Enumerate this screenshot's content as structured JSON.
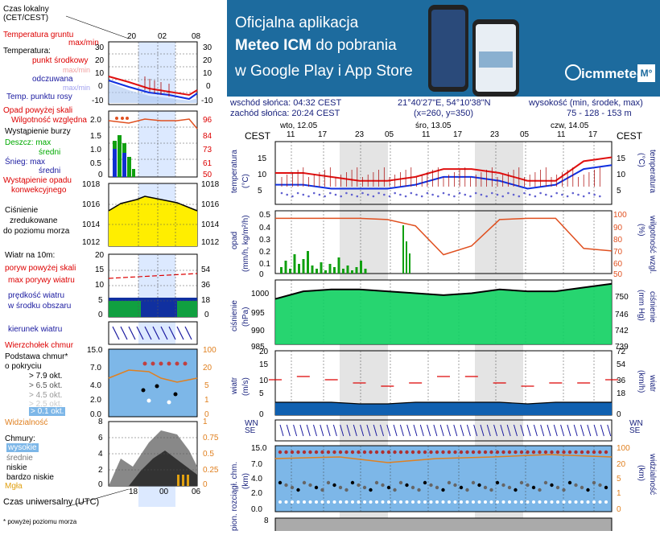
{
  "legend": {
    "local_time": "Czas lokalny\n(CET/CEST)",
    "local_ticks": [
      "20",
      "02",
      "08"
    ],
    "ground_temp": "Temperatura gruntu",
    "ground_temp_2": "max/min",
    "temperature": "Temperatura:",
    "mid_point": "punkt środkowy",
    "max_min_1": "max/min",
    "feels_like": "odczuwana",
    "max_min_2": "max/min",
    "dew_point": "Temp. punktu rosy",
    "temp_ticks_left": [
      "30",
      "20",
      "10",
      "0",
      "-10"
    ],
    "temp_ticks_right": [
      "30",
      "20",
      "10",
      "0",
      "-10"
    ],
    "precip_above": "Opad powyżej skali",
    "humidity": "Wilgotność względna",
    "storm": "Wystąpienie burzy",
    "rain_max": "Deszcz: max",
    "rain_avg": "średni",
    "snow_max": "Śnieg: max",
    "snow_avg": "średni",
    "precip_occurrence": "Wystąpienie opadu",
    "precip_convective": "konwekcyjnego",
    "precip_ticks": [
      "2.0",
      "1.5",
      "1.0",
      "0.5",
      "0"
    ],
    "humidity_ticks": [
      "96",
      "84",
      "73",
      "61",
      "50"
    ],
    "pressure": "Ciśnienie",
    "pressure_reduced": "zredukowane",
    "pressure_sea": "do poziomu morza",
    "pressure_ticks": [
      "1018",
      "1016",
      "1014",
      "1012"
    ],
    "wind_10m": "Wiatr na 10m:",
    "gust_above": "poryw powyżej skali",
    "max_gusts": "max porywy wiatru",
    "wind_speed": "prędkość wiatru",
    "wind_avg": "w środku obszaru",
    "wind_ticks_left": [
      "20",
      "15",
      "10",
      "5",
      "0"
    ],
    "wind_ticks_right": [
      "72",
      "54",
      "36",
      "18",
      "0"
    ],
    "wind_dir": "kierunek wiatru",
    "cloud_top": "Wierzchołek chmur",
    "cloud_base": "Podstawa chmur*",
    "cloud_base_2": "o pokryciu",
    "okt_79": "> 7.9 okt.",
    "okt_65": "> 6.5 okt.",
    "okt_45": "> 4.5 okt.",
    "okt_25": "> 2.5 okt.",
    "okt_01": "> 0.1 okt.",
    "visibility": "Widzialność",
    "cloud_ticks_left": [
      "15.0",
      "7.0",
      "4.0",
      "2.0",
      "0.0"
    ],
    "cloud_ticks_right": [
      "100",
      "20",
      "5",
      "1",
      "0"
    ],
    "clouds": "Chmury:",
    "high": "wysokie",
    "middle": "średnie",
    "low": "niskie",
    "very_low": "bardzo niskie",
    "fog": "Mgła",
    "cloud_left_ticks": [
      "8",
      "6",
      "4",
      "2",
      "0"
    ],
    "cloud_right_ticks": [
      "1",
      "0.75",
      "0.5",
      "0.25",
      "0"
    ],
    "utc_ticks": [
      "18",
      "00",
      "06"
    ],
    "utc_time": "Czas uniwersalny (UTC)",
    "footnote": "* powyżej poziomu morza"
  },
  "banner": {
    "line1": "Oficjalna aplikacja",
    "line2_bold": "Meteo ICM",
    "line2_rest": " do pobrania",
    "line3": "w Google Play i App Store",
    "logo": "icmmeteo",
    "logo_badge": "M°"
  },
  "meta": {
    "sunrise": "wschód słońca: 04:32 CEST",
    "sunset": "zachód słońca: 20:24 CEST",
    "coords": "21°40'27\"E, 54°10'38\"N",
    "grid": "(x=260, y=350)",
    "elev_label": "wysokość (min, środek, max)",
    "elev_values": "75 - 128 - 153 m"
  },
  "main": {
    "cest_left": "CEST",
    "cest_right": "CEST",
    "days": [
      "wto, 12.05",
      "śro, 13.05",
      "czw, 14.05"
    ],
    "hours": [
      "11",
      "17",
      "23",
      "05",
      "11",
      "17",
      "23",
      "05",
      "11",
      "17"
    ],
    "temp_label_left": "temperatura",
    "temp_unit_left": "(°C)",
    "temp_label_right": "temperatura",
    "temp_unit_right": "(°C)",
    "temp_ticks": [
      "15",
      "10",
      "5"
    ],
    "precip_label_left": "opad",
    "precip_unit_left": "(mm/h, kg/m²/h)",
    "precip_label_right": "wilgotność wzgl.",
    "precip_unit_right": "(%)",
    "precip_ticks": [
      "0.5",
      "0.4",
      "0.3",
      "0.2",
      "0.1",
      "0"
    ],
    "humidity_ticks": [
      "100",
      "90",
      "80",
      "70",
      "60",
      "50"
    ],
    "pressure_label_left": "ciśnienie",
    "pressure_unit_left": "(hPa)",
    "pressure_label_right": "ciśnienie",
    "pressure_unit_right": "(mm Hg)",
    "pressure_ticks": [
      "1000",
      "995",
      "990",
      "985"
    ],
    "pressure_ticks_right": [
      "750",
      "746",
      "742",
      "739"
    ],
    "wind_label_left": "wiatr",
    "wind_unit_left": "(m/s)",
    "wind_label_right": "wiatr",
    "wind_unit_right": "(km/h)",
    "wind_ticks": [
      "20",
      "15",
      "10",
      "5",
      "0"
    ],
    "wind_ticks_right": [
      "72",
      "54",
      "36",
      "18",
      "0"
    ],
    "dir_letters": [
      "W",
      "N",
      "S",
      "E"
    ],
    "cloud_label_left": "pion. rozciągł. chm.",
    "cloud_unit_left": "(km)",
    "cloud_label_right": "widzialność",
    "cloud_unit_right": "(km)",
    "cloud_ticks": [
      "15.0",
      "7.0",
      "4.0",
      "2.0",
      "0.0"
    ],
    "vis_ticks": [
      "100",
      "20",
      "5",
      "1",
      "0"
    ],
    "bottom_tick": "8"
  },
  "colors": {
    "temp": "#e01010",
    "feels": "#1030e0",
    "dew": "#6060d0",
    "humidity": "#e05020",
    "rain": "#10a010",
    "pressure": "#10d060",
    "wind": "#1060e0",
    "banner": "#1d6b9e"
  },
  "chart_data": [
    {
      "type": "line",
      "title": "temperatura",
      "ylabel": "(°C)",
      "ylim": [
        2,
        18
      ],
      "x_hours_from_start": [
        0,
        6,
        12,
        18,
        24,
        30,
        36,
        42,
        48,
        54,
        60,
        66,
        72
      ],
      "series": [
        {
          "name": "temperatura",
          "values": [
            10,
            10,
            9,
            8,
            8,
            9,
            11,
            11,
            10,
            8,
            8,
            13,
            14
          ]
        },
        {
          "name": "odczuwana",
          "values": [
            7,
            7,
            6,
            6,
            6,
            7,
            9,
            9,
            8,
            6,
            7,
            11,
            12
          ]
        }
      ]
    },
    {
      "type": "line",
      "title": "wilgotność wzgl.",
      "ylabel": "(%)",
      "ylim": [
        50,
        100
      ],
      "x_hours_from_start": [
        0,
        6,
        12,
        18,
        24,
        30,
        36,
        42,
        48,
        54,
        60,
        66,
        72
      ],
      "series": [
        {
          "name": "wilgotność wzgl.",
          "values": [
            94,
            94,
            94,
            94,
            93,
            88,
            65,
            72,
            93,
            94,
            94,
            70,
            68
          ]
        }
      ]
    },
    {
      "type": "area",
      "title": "ciśnienie",
      "ylabel": "(hPa)",
      "ylim": [
        985,
        1002
      ],
      "x_hours_from_start": [
        0,
        6,
        12,
        18,
        24,
        30,
        36,
        42,
        48,
        54,
        60,
        66,
        72
      ],
      "series": [
        {
          "name": "ciśnienie",
          "values": [
            997,
            999,
            999.5,
            999.5,
            999,
            998.5,
            998,
            998.5,
            999.5,
            999,
            999,
            1000,
            1001
          ]
        }
      ]
    },
    {
      "type": "bar",
      "title": "wiatr",
      "ylabel": "(m/s)",
      "ylim": [
        0,
        20
      ],
      "x_hours_from_start": [
        0,
        6,
        12,
        18,
        24,
        30,
        36,
        42,
        48,
        54,
        60,
        66,
        72
      ],
      "series": [
        {
          "name": "prędkość wiatru",
          "values": [
            4,
            4,
            4,
            3.5,
            3.5,
            4,
            4,
            4,
            4,
            3.5,
            4,
            4,
            4
          ]
        },
        {
          "name": "max porywy wiatru",
          "values": [
            11,
            12,
            11,
            10,
            9,
            10,
            12,
            12,
            10,
            9,
            10,
            10,
            11
          ]
        }
      ]
    }
  ]
}
